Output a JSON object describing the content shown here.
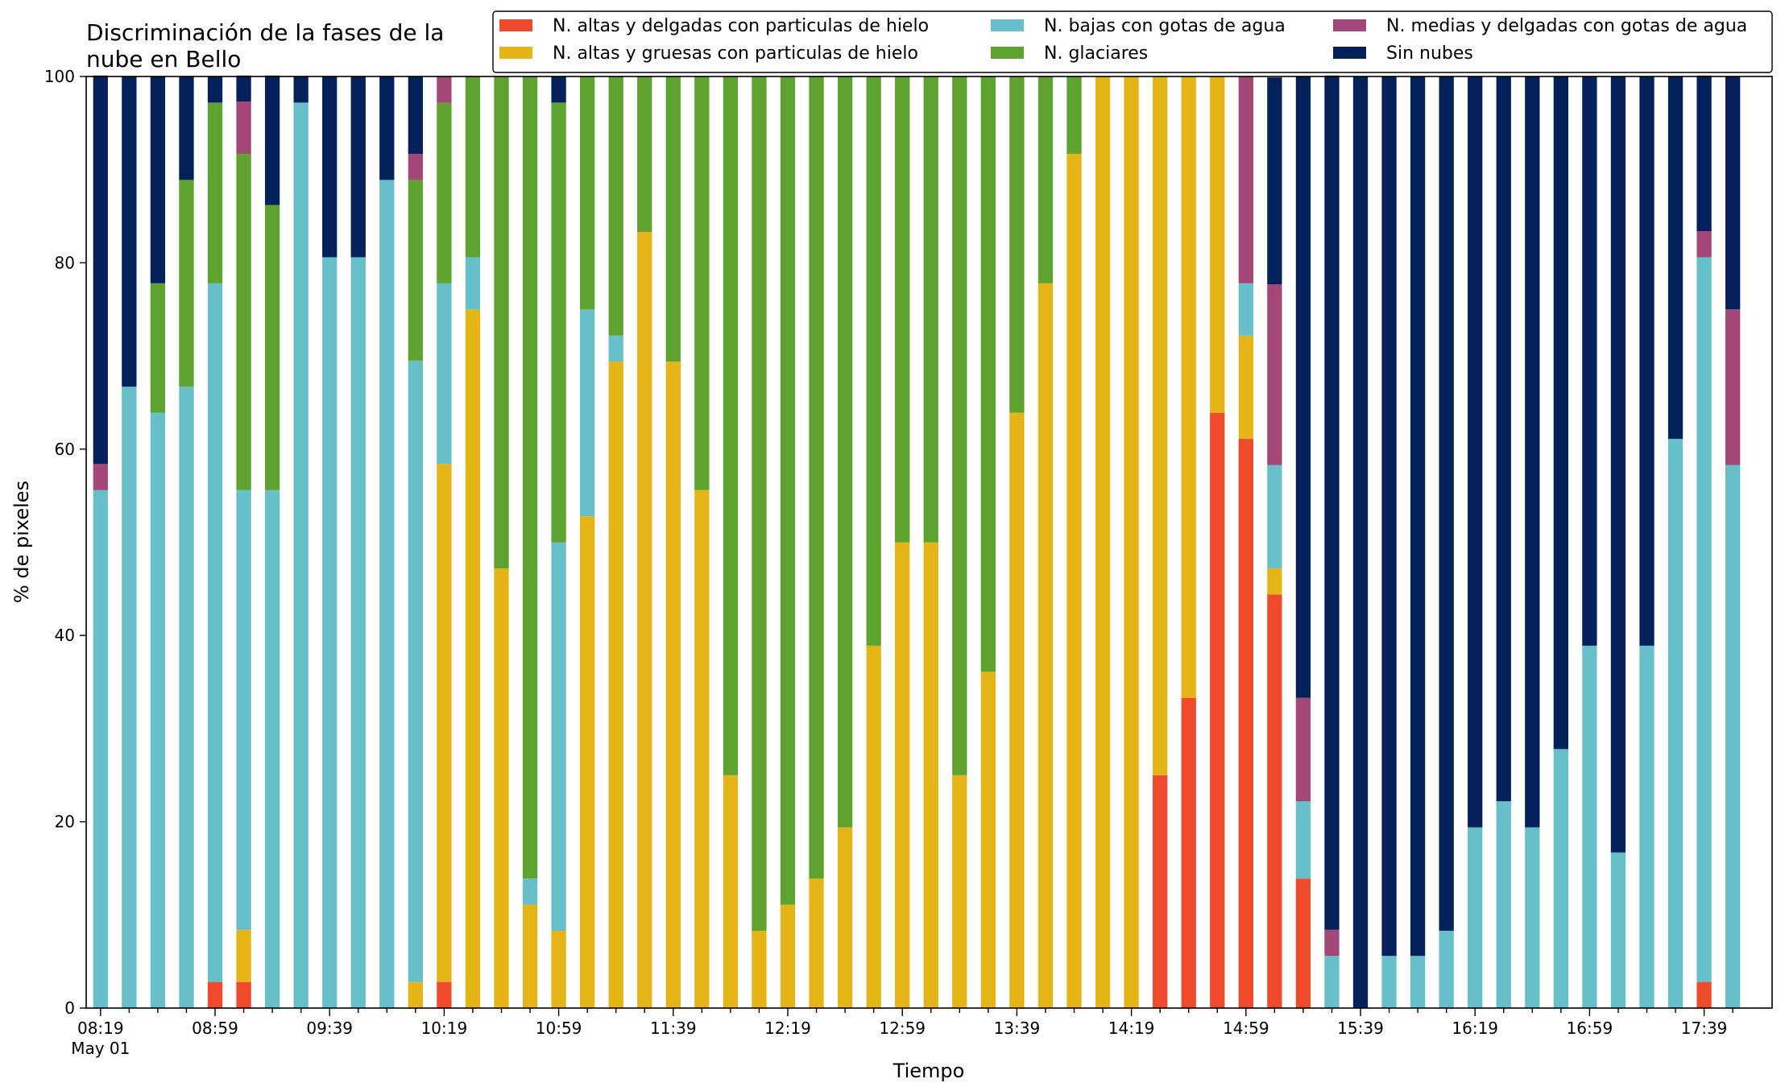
{
  "chart_data": {
    "type": "bar",
    "stacked": true,
    "title_lines": [
      "Discriminación de la fases de la",
      "nube en Bello"
    ],
    "xlabel": "Tiempo",
    "ylabel": "% de pixeles",
    "ylim": [
      0,
      100
    ],
    "yticks": [
      0,
      20,
      40,
      60,
      80,
      100
    ],
    "grid": false,
    "legend_position": "top-right",
    "x_tick_labels": [
      {
        "index": 0,
        "label": "08:19",
        "sub": "May 01"
      },
      {
        "index": 4,
        "label": "08:59"
      },
      {
        "index": 8,
        "label": "09:39"
      },
      {
        "index": 12,
        "label": "10:19"
      },
      {
        "index": 16,
        "label": "10:59"
      },
      {
        "index": 20,
        "label": "11:39"
      },
      {
        "index": 24,
        "label": "12:19"
      },
      {
        "index": 28,
        "label": "12:59"
      },
      {
        "index": 32,
        "label": "13:39"
      },
      {
        "index": 36,
        "label": "14:19"
      },
      {
        "index": 40,
        "label": "14:59"
      },
      {
        "index": 44,
        "label": "15:39"
      },
      {
        "index": 48,
        "label": "16:19"
      },
      {
        "index": 52,
        "label": "16:59"
      },
      {
        "index": 56,
        "label": "17:39"
      }
    ],
    "categories": [
      "08:19",
      "08:29",
      "08:39",
      "08:49",
      "08:59",
      "09:09",
      "09:19",
      "09:29",
      "09:39",
      "09:49",
      "09:59",
      "10:09",
      "10:19",
      "10:29",
      "10:39",
      "10:49",
      "10:59",
      "11:09",
      "11:19",
      "11:29",
      "11:39",
      "11:49",
      "11:59",
      "12:09",
      "12:19",
      "12:29",
      "12:39",
      "12:49",
      "12:59",
      "13:09",
      "13:19",
      "13:29",
      "13:39",
      "13:49",
      "13:59",
      "14:09",
      "14:19",
      "14:29",
      "14:39",
      "14:49",
      "14:59",
      "15:09",
      "15:19",
      "15:29",
      "15:39",
      "15:49",
      "15:59",
      "16:09",
      "16:19",
      "16:29",
      "16:39",
      "16:49",
      "16:59",
      "17:09",
      "17:19",
      "17:29",
      "17:39",
      "17:49"
    ],
    "series": [
      {
        "name": "N. altas y delgadas con particulas de hielo",
        "color": "#ee4a2b",
        "values": [
          0,
          0,
          0,
          0,
          2.8,
          2.8,
          0,
          0,
          0,
          0,
          0,
          0,
          2.8,
          0,
          0,
          0,
          0,
          0,
          0,
          0,
          0,
          0,
          0,
          0,
          0,
          0,
          0,
          0,
          0,
          0,
          0,
          0,
          0,
          0,
          0,
          0,
          0,
          25,
          33.3,
          63.9,
          61.1,
          44.4,
          13.9,
          0,
          0,
          0,
          0,
          0,
          0,
          0,
          0,
          0,
          0,
          0,
          0,
          0,
          2.8,
          0
        ]
      },
      {
        "name": "N. altas y gruesas con particulas de hielo",
        "color": "#e5b417",
        "values": [
          0,
          0,
          0,
          0,
          0,
          5.6,
          0,
          0,
          0,
          0,
          0,
          2.8,
          55.6,
          75,
          47.2,
          11.1,
          8.3,
          52.8,
          69.4,
          83.3,
          69.4,
          55.6,
          25,
          8.3,
          11.1,
          13.9,
          19.4,
          38.9,
          50,
          50,
          25,
          36.1,
          63.9,
          77.8,
          91.7,
          100,
          100,
          75,
          66.7,
          36.1,
          11.1,
          2.8,
          0,
          0,
          0,
          0,
          0,
          0,
          0,
          0,
          0,
          0,
          0,
          0,
          0,
          0,
          0,
          0
        ]
      },
      {
        "name": "N. bajas con gotas de agua",
        "color": "#67bfca",
        "values": [
          55.6,
          66.7,
          63.9,
          66.7,
          75,
          47.2,
          55.6,
          97.2,
          80.6,
          80.6,
          88.9,
          66.7,
          19.4,
          5.6,
          0,
          2.8,
          41.7,
          22.2,
          2.8,
          0,
          0,
          0,
          0,
          0,
          0,
          0,
          0,
          0,
          0,
          0,
          0,
          0,
          0,
          0,
          0,
          0,
          0,
          0,
          0,
          0,
          5.6,
          11.1,
          8.3,
          5.6,
          0,
          5.6,
          5.6,
          8.3,
          19.4,
          22.2,
          19.4,
          27.8,
          38.9,
          16.7,
          38.9,
          61.1,
          77.8,
          58.3
        ]
      },
      {
        "name": "N. glaciares",
        "color": "#5ea22f",
        "values": [
          0,
          0,
          13.9,
          22.2,
          19.4,
          36.1,
          30.6,
          0,
          0,
          0,
          0,
          19.4,
          19.4,
          19.4,
          52.8,
          86.1,
          47.2,
          25,
          27.8,
          16.7,
          30.6,
          44.4,
          75,
          91.7,
          88.9,
          86.1,
          80.6,
          61.1,
          50,
          50,
          75,
          63.9,
          36.1,
          22.2,
          8.3,
          0,
          0,
          0,
          0,
          0,
          0,
          0,
          0,
          0,
          0,
          0,
          0,
          0,
          0,
          0,
          0,
          0,
          0,
          0,
          0,
          0,
          0,
          0
        ]
      },
      {
        "name": "N. medias y delgadas con gotas de agua",
        "color": "#a34678",
        "values": [
          2.8,
          0,
          0,
          0,
          0,
          5.6,
          0,
          0,
          0,
          0,
          0,
          2.8,
          2.8,
          0,
          0,
          0,
          0,
          0,
          0,
          0,
          0,
          0,
          0,
          0,
          0,
          0,
          0,
          0,
          0,
          0,
          0,
          0,
          0,
          0,
          0,
          0,
          0,
          0,
          0,
          0,
          22.2,
          19.4,
          11.1,
          2.8,
          0,
          0,
          0,
          0,
          0,
          0,
          0,
          0,
          0,
          0,
          0,
          0,
          2.8,
          16.7
        ]
      },
      {
        "name": "Sin nubes",
        "color": "#04215c",
        "values": [
          41.7,
          33.3,
          22.2,
          11.1,
          2.8,
          2.8,
          13.9,
          2.8,
          19.4,
          19.4,
          11.1,
          8.3,
          0,
          0,
          0,
          0,
          2.8,
          0,
          0,
          0,
          0,
          0,
          0,
          0,
          0,
          0,
          0,
          0,
          0,
          0,
          0,
          0,
          0,
          0,
          0,
          0,
          0,
          0,
          0,
          0,
          0,
          22.2,
          66.7,
          91.7,
          100,
          94.4,
          94.4,
          91.7,
          80.6,
          77.8,
          80.6,
          72.2,
          61.1,
          83.3,
          61.1,
          38.9,
          16.7,
          25
        ]
      }
    ]
  }
}
